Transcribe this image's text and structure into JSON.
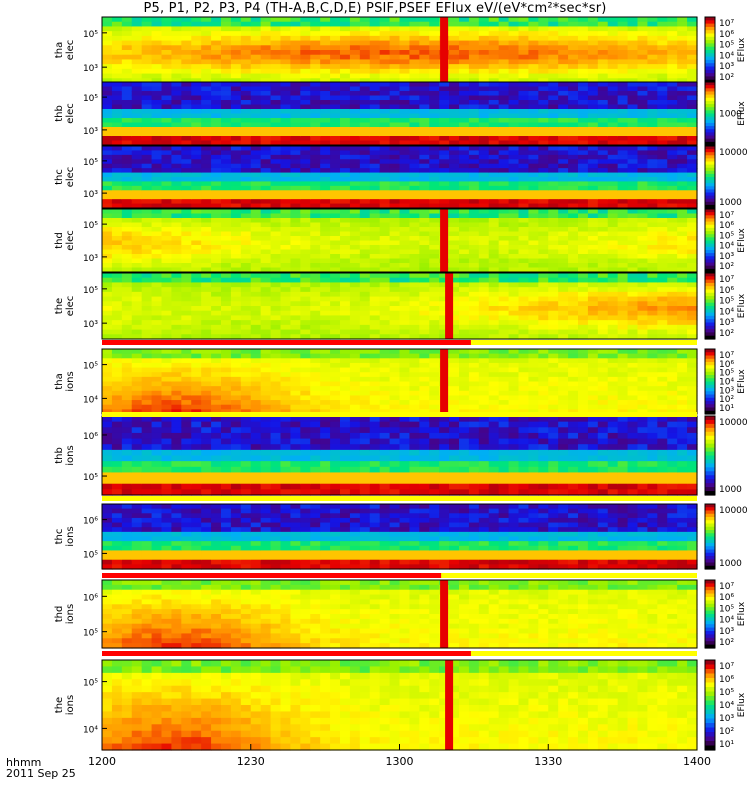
{
  "title": "P5, P1, P2, P3, P4 (TH-A,B,C,D,E) PSIF,PSEF EFlux eV/(eV*cm²*sec*sr)",
  "time_axis": {
    "row_label": "hhmm",
    "date_label": "2011 Sep 25",
    "ticks": [
      "1200",
      "1230",
      "1300",
      "1330",
      "1400"
    ]
  },
  "chart_data": {
    "type": "heatmap",
    "title": "P5, P1, P2, P3, P4 (TH-A,B,C,D,E) PSIF,PSEF EFlux eV/(eV*cm²*sec*sr)",
    "x_range_hhmm": [
      "1200",
      "1400"
    ],
    "colorbar_label": "EFlux",
    "panels": [
      {
        "label_top": "tha",
        "label_bottom": "elec",
        "y_ticks": [
          "10⁵",
          "10³"
        ],
        "cbar_ticks": [
          "10⁷",
          "10⁶",
          "10⁵",
          "10⁴",
          "10³",
          "10²"
        ],
        "cbar_label": "EFlux",
        "highlight_time": "1309",
        "kind": "efx"
      },
      {
        "label_top": "thb",
        "label_bottom": "elec",
        "y_ticks": [
          "10⁵",
          "10³"
        ],
        "cbar_ticks": [
          "1000"
        ],
        "cbar_label": "EFlux",
        "highlight_time": "",
        "kind": "band"
      },
      {
        "label_top": "thc",
        "label_bottom": "elec",
        "y_ticks": [
          "10⁵",
          "10³"
        ],
        "cbar_ticks": [
          "10000",
          "1000"
        ],
        "cbar_label": "",
        "highlight_time": "",
        "kind": "band"
      },
      {
        "label_top": "thd",
        "label_bottom": "elec",
        "y_ticks": [
          "10⁵",
          "10³"
        ],
        "cbar_ticks": [
          "10⁷",
          "10⁶",
          "10⁵",
          "10⁴",
          "10³",
          "10²"
        ],
        "cbar_label": "EFlux",
        "highlight_time": "1309",
        "kind": "efx"
      },
      {
        "label_top": "the",
        "label_bottom": "elec",
        "y_ticks": [
          "10⁵",
          "10³"
        ],
        "cbar_ticks": [
          "10⁷",
          "10⁶",
          "10⁵",
          "10⁴",
          "10³",
          "10²"
        ],
        "cbar_label": "EFlux",
        "highlight_time": "1310",
        "kind": "efx"
      },
      {
        "label_top": "tha",
        "label_bottom": "ions",
        "y_ticks": [
          "10⁵",
          "10⁴"
        ],
        "cbar_ticks": [
          "10⁷",
          "10⁶",
          "10⁵",
          "10⁴",
          "10³",
          "10²",
          "10¹"
        ],
        "cbar_label": "EFlux",
        "highlight_time": "1309",
        "kind": "ions"
      },
      {
        "label_top": "thb",
        "label_bottom": "ions",
        "y_ticks": [
          "10⁶",
          "10⁵"
        ],
        "cbar_ticks": [
          "10000",
          "1000"
        ],
        "cbar_label": "",
        "highlight_time": "",
        "kind": "band"
      },
      {
        "label_top": "thc",
        "label_bottom": "ions",
        "y_ticks": [
          "10⁶",
          "10⁵"
        ],
        "cbar_ticks": [
          "10000",
          "1000"
        ],
        "cbar_label": "",
        "highlight_time": "",
        "kind": "band"
      },
      {
        "label_top": "thd",
        "label_bottom": "ions",
        "y_ticks": [
          "10⁶",
          "10⁵"
        ],
        "cbar_ticks": [
          "10⁷",
          "10⁶",
          "10⁵",
          "10⁴",
          "10³",
          "10²"
        ],
        "cbar_label": "EFlux",
        "highlight_time": "1309",
        "kind": "ions"
      },
      {
        "label_top": "the",
        "label_bottom": "ions",
        "y_ticks": [
          "10⁵",
          "10⁴"
        ],
        "cbar_ticks": [
          "10⁷",
          "10⁶",
          "10⁵",
          "10⁴",
          "10³",
          "10²",
          "10¹"
        ],
        "cbar_label": "EFlux",
        "highlight_time": "1310",
        "kind": "ions"
      }
    ]
  }
}
